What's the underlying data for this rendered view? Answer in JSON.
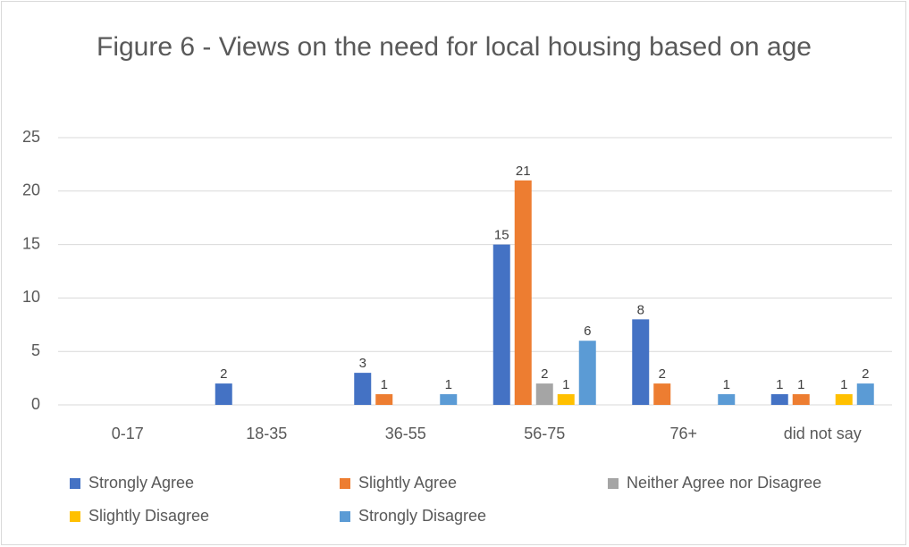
{
  "chart_data": {
    "type": "bar",
    "title": "Figure 6 - Views on the need for local housing based on age",
    "categories": [
      "0-17",
      "18-35",
      "36-55",
      "56-75",
      "76+",
      "did not say"
    ],
    "series": [
      {
        "name": "Strongly Agree",
        "color": "#4472c4",
        "values": [
          0,
          2,
          3,
          15,
          8,
          1
        ]
      },
      {
        "name": "Slightly Agree",
        "color": "#ed7d31",
        "values": [
          0,
          0,
          1,
          21,
          2,
          1
        ]
      },
      {
        "name": "Neither Agree nor Disagree",
        "color": "#a5a5a5",
        "values": [
          0,
          0,
          0,
          2,
          0,
          0
        ]
      },
      {
        "name": "Slightly Disagree",
        "color": "#ffc000",
        "values": [
          0,
          0,
          0,
          1,
          0,
          1
        ]
      },
      {
        "name": "Strongly Disagree",
        "color": "#5b9bd5",
        "values": [
          0,
          0,
          1,
          6,
          1,
          2
        ]
      }
    ],
    "ylim": [
      0,
      25
    ],
    "yticks": [
      0,
      5,
      10,
      15,
      20,
      25
    ],
    "grid": true,
    "legend": "bottom"
  }
}
